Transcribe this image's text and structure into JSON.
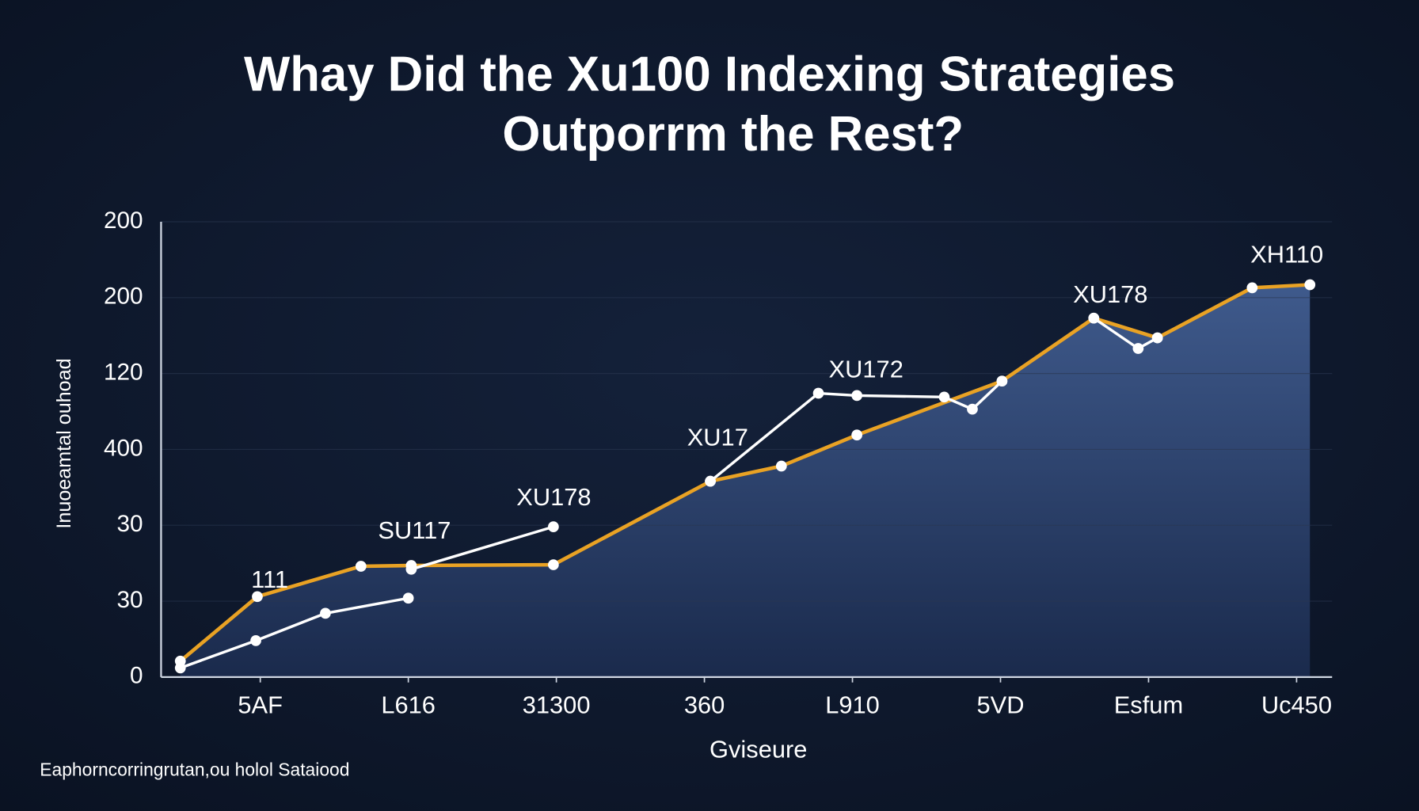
{
  "chart_data": {
    "type": "line",
    "title": [
      "Whay Did the Xu100 Indexing Strategies",
      "Outporrm the Rest?"
    ],
    "y_label": "Inuoeamtal ouhoad",
    "x_label": "Gviseure",
    "footnote": "Eaphorncorringrutan,ou holol Sataiood",
    "xlim": [
      -0.67,
      7.24
    ],
    "xticks": [
      {
        "value": 0,
        "label": "5AF"
      },
      {
        "value": 1,
        "label": "L616"
      },
      {
        "value": 2,
        "label": "31300"
      },
      {
        "value": 3,
        "label": "360"
      },
      {
        "value": 4,
        "label": "L910"
      },
      {
        "value": 5,
        "label": "5VD"
      },
      {
        "value": 6,
        "label": "Esfum"
      },
      {
        "value": 7,
        "label": "Uc450"
      }
    ],
    "ylim": [
      0,
      6
    ],
    "yticks": [
      {
        "value": 0,
        "label": "0"
      },
      {
        "value": 1,
        "label": "30"
      },
      {
        "value": 2,
        "label": "30"
      },
      {
        "value": 3,
        "label": "400"
      },
      {
        "value": 4,
        "label": "120"
      },
      {
        "value": 5,
        "label": "200"
      },
      {
        "value": 6,
        "label": "200"
      }
    ],
    "grid": true,
    "series": [
      {
        "color": "#e9a224",
        "area": true,
        "x": [
          -0.54,
          -0.02,
          0.68,
          1.02,
          1.98,
          3.04,
          3.52,
          4.03,
          5.01,
          5.63,
          6.06,
          6.7,
          7.09
        ],
        "values": [
          0.21,
          1.06,
          1.46,
          1.47,
          1.48,
          2.58,
          2.78,
          3.19,
          3.9,
          4.73,
          4.47,
          5.13,
          5.17
        ]
      },
      {
        "color": "#ffffff",
        "area": false,
        "x": [
          -0.54,
          -0.03,
          0.44,
          1.0,
          null,
          1.02,
          1.98,
          null,
          3.04,
          3.77,
          4.03,
          4.62,
          4.81,
          5.01,
          null,
          5.63,
          5.93,
          6.06
        ],
        "values": [
          0.12,
          0.48,
          0.84,
          1.04,
          null,
          1.42,
          1.98,
          null,
          2.58,
          3.74,
          3.71,
          3.69,
          3.53,
          3.9,
          null,
          4.73,
          4.33,
          4.47
        ]
      }
    ],
    "annotations": [
      "111",
      "SU117",
      "XU178",
      "XU17",
      "XU172",
      "XU178",
      "XH110"
    ]
  }
}
